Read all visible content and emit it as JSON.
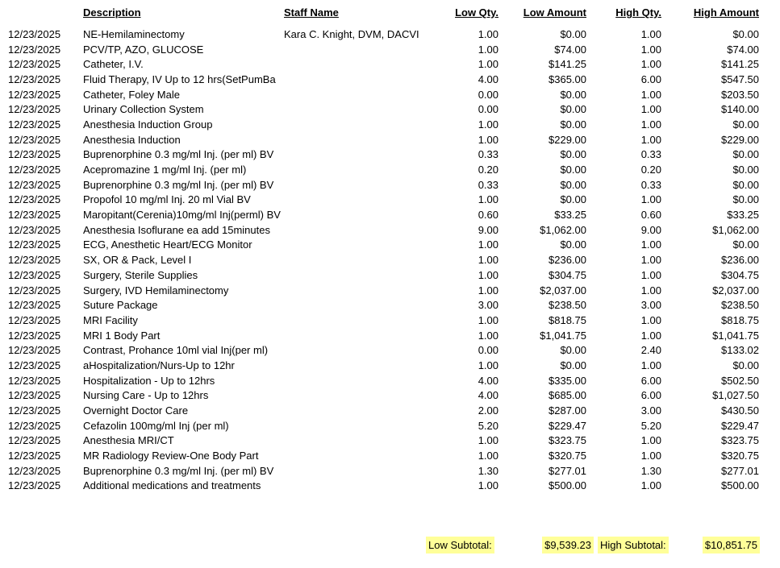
{
  "table": {
    "headers": {
      "date": "",
      "description": "Description",
      "staff": "Staff Name",
      "low_qty": "Low Qty.",
      "low_amount": "Low Amount",
      "high_qty": "High Qty.",
      "high_amount": "High Amount"
    },
    "rows": [
      {
        "date": "12/23/2025",
        "description": "NE-Hemilaminectomy",
        "staff": "Kara C. Knight, DVM, DACVI",
        "low_qty": "1.00",
        "low_amount": "$0.00",
        "high_qty": "1.00",
        "high_amount": "$0.00"
      },
      {
        "date": "12/23/2025",
        "description": "PCV/TP, AZO, GLUCOSE",
        "staff": "",
        "low_qty": "1.00",
        "low_amount": "$74.00",
        "high_qty": "1.00",
        "high_amount": "$74.00"
      },
      {
        "date": "12/23/2025",
        "description": "Catheter, I.V.",
        "staff": "",
        "low_qty": "1.00",
        "low_amount": "$141.25",
        "high_qty": "1.00",
        "high_amount": "$141.25"
      },
      {
        "date": "12/23/2025",
        "description": "Fluid Therapy, IV Up to 12 hrs(SetPumBa",
        "staff": "",
        "low_qty": "4.00",
        "low_amount": "$365.00",
        "high_qty": "6.00",
        "high_amount": "$547.50"
      },
      {
        "date": "12/23/2025",
        "description": "Catheter, Foley Male",
        "staff": "",
        "low_qty": "0.00",
        "low_amount": "$0.00",
        "high_qty": "1.00",
        "high_amount": "$203.50"
      },
      {
        "date": "12/23/2025",
        "description": "Urinary Collection System",
        "staff": "",
        "low_qty": "0.00",
        "low_amount": "$0.00",
        "high_qty": "1.00",
        "high_amount": "$140.00"
      },
      {
        "date": "12/23/2025",
        "description": "Anesthesia Induction Group",
        "staff": "",
        "low_qty": "1.00",
        "low_amount": "$0.00",
        "high_qty": "1.00",
        "high_amount": "$0.00"
      },
      {
        "date": "12/23/2025",
        "description": "Anesthesia Induction",
        "staff": "",
        "low_qty": "1.00",
        "low_amount": "$229.00",
        "high_qty": "1.00",
        "high_amount": "$229.00"
      },
      {
        "date": "12/23/2025",
        "description": "Buprenorphine 0.3 mg/ml Inj. (per ml) BV",
        "staff": "",
        "low_qty": "0.33",
        "low_amount": "$0.00",
        "high_qty": "0.33",
        "high_amount": "$0.00"
      },
      {
        "date": "12/23/2025",
        "description": "Acepromazine 1 mg/ml Inj. (per ml)",
        "staff": "",
        "low_qty": "0.20",
        "low_amount": "$0.00",
        "high_qty": "0.20",
        "high_amount": "$0.00"
      },
      {
        "date": "12/23/2025",
        "description": "Buprenorphine 0.3 mg/ml Inj. (per ml) BV",
        "staff": "",
        "low_qty": "0.33",
        "low_amount": "$0.00",
        "high_qty": "0.33",
        "high_amount": "$0.00"
      },
      {
        "date": "12/23/2025",
        "description": "Propofol 10 mg/ml Inj. 20 ml Vial BV",
        "staff": "",
        "low_qty": "1.00",
        "low_amount": "$0.00",
        "high_qty": "1.00",
        "high_amount": "$0.00"
      },
      {
        "date": "12/23/2025",
        "description": "Maropitant(Cerenia)10mg/ml Inj(perml) BV",
        "staff": "",
        "low_qty": "0.60",
        "low_amount": "$33.25",
        "high_qty": "0.60",
        "high_amount": "$33.25"
      },
      {
        "date": "12/23/2025",
        "description": "Anesthesia Isoflurane ea add 15minutes",
        "staff": "",
        "low_qty": "9.00",
        "low_amount": "$1,062.00",
        "high_qty": "9.00",
        "high_amount": "$1,062.00"
      },
      {
        "date": "12/23/2025",
        "description": "ECG, Anesthetic Heart/ECG Monitor",
        "staff": "",
        "low_qty": "1.00",
        "low_amount": "$0.00",
        "high_qty": "1.00",
        "high_amount": "$0.00"
      },
      {
        "date": "12/23/2025",
        "description": "SX, OR & Pack, Level I",
        "staff": "",
        "low_qty": "1.00",
        "low_amount": "$236.00",
        "high_qty": "1.00",
        "high_amount": "$236.00"
      },
      {
        "date": "12/23/2025",
        "description": "Surgery, Sterile Supplies",
        "staff": "",
        "low_qty": "1.00",
        "low_amount": "$304.75",
        "high_qty": "1.00",
        "high_amount": "$304.75"
      },
      {
        "date": "12/23/2025",
        "description": "Surgery, IVD Hemilaminectomy",
        "staff": "",
        "low_qty": "1.00",
        "low_amount": "$2,037.00",
        "high_qty": "1.00",
        "high_amount": "$2,037.00"
      },
      {
        "date": "12/23/2025",
        "description": "Suture Package",
        "staff": "",
        "low_qty": "3.00",
        "low_amount": "$238.50",
        "high_qty": "3.00",
        "high_amount": "$238.50"
      },
      {
        "date": "12/23/2025",
        "description": "MRI Facility",
        "staff": "",
        "low_qty": "1.00",
        "low_amount": "$818.75",
        "high_qty": "1.00",
        "high_amount": "$818.75"
      },
      {
        "date": "12/23/2025",
        "description": "MRI 1 Body Part",
        "staff": "",
        "low_qty": "1.00",
        "low_amount": "$1,041.75",
        "high_qty": "1.00",
        "high_amount": "$1,041.75"
      },
      {
        "date": "12/23/2025",
        "description": "Contrast, Prohance 10ml vial Inj(per ml)",
        "staff": "",
        "low_qty": "0.00",
        "low_amount": "$0.00",
        "high_qty": "2.40",
        "high_amount": "$133.02"
      },
      {
        "date": "12/23/2025",
        "description": "aHospitalization/Nurs-Up to 12hr",
        "staff": "",
        "low_qty": "1.00",
        "low_amount": "$0.00",
        "high_qty": "1.00",
        "high_amount": "$0.00"
      },
      {
        "date": "12/23/2025",
        "description": "Hospitalization - Up to 12hrs",
        "staff": "",
        "low_qty": "4.00",
        "low_amount": "$335.00",
        "high_qty": "6.00",
        "high_amount": "$502.50"
      },
      {
        "date": "12/23/2025",
        "description": "Nursing Care - Up to 12hrs",
        "staff": "",
        "low_qty": "4.00",
        "low_amount": "$685.00",
        "high_qty": "6.00",
        "high_amount": "$1,027.50"
      },
      {
        "date": "12/23/2025",
        "description": "Overnight Doctor Care",
        "staff": "",
        "low_qty": "2.00",
        "low_amount": "$287.00",
        "high_qty": "3.00",
        "high_amount": "$430.50"
      },
      {
        "date": "12/23/2025",
        "description": "Cefazolin 100mg/ml Inj (per ml)",
        "staff": "",
        "low_qty": "5.20",
        "low_amount": "$229.47",
        "high_qty": "5.20",
        "high_amount": "$229.47"
      },
      {
        "date": "12/23/2025",
        "description": "Anesthesia MRI/CT",
        "staff": "",
        "low_qty": "1.00",
        "low_amount": "$323.75",
        "high_qty": "1.00",
        "high_amount": "$323.75"
      },
      {
        "date": "12/23/2025",
        "description": "MR Radiology Review-One Body Part",
        "staff": "",
        "low_qty": "1.00",
        "low_amount": "$320.75",
        "high_qty": "1.00",
        "high_amount": "$320.75"
      },
      {
        "date": "12/23/2025",
        "description": "Buprenorphine 0.3 mg/ml Inj. (per ml) BV",
        "staff": "",
        "low_qty": "1.30",
        "low_amount": "$277.01",
        "high_qty": "1.30",
        "high_amount": "$277.01"
      },
      {
        "date": "12/23/2025",
        "description": "Additional medications and treatments",
        "staff": "",
        "low_qty": "1.00",
        "low_amount": "$500.00",
        "high_qty": "1.00",
        "high_amount": "$500.00"
      }
    ]
  },
  "subtotals": {
    "low_label": "Low Subtotal:",
    "low_value": "$9,539.23",
    "high_label": "High Subtotal:",
    "high_value": "$10,851.75",
    "highlight_color": "#ffff99"
  }
}
